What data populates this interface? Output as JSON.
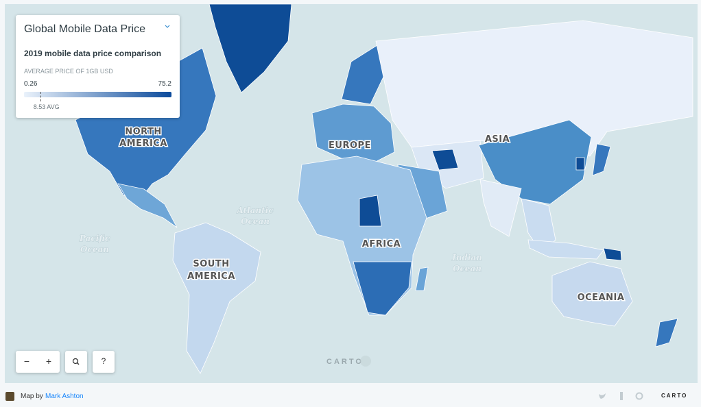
{
  "legend": {
    "title": "Global Mobile Data Price",
    "subtitle": "2019 mobile data price comparison",
    "label": "AVERAGE PRICE OF 1GB USD",
    "min": 0.26,
    "max": 75.2,
    "avg": {
      "value": 8.53,
      "label": "8.53 AVG"
    }
  },
  "map_labels": {
    "north_america": [
      "NORTH",
      "AMERICA"
    ],
    "europe": "EUROPE",
    "asia": "ASIA",
    "africa": "AFRICA",
    "south_america": [
      "SOUTH",
      "AMERICA"
    ],
    "oceania": "OCEANIA",
    "atlantic": [
      "Atlantic",
      "Ocean"
    ],
    "pacific": [
      "Pacific",
      "Ocean"
    ],
    "indian": [
      "Indian",
      "Ocean"
    ]
  },
  "controls": {
    "zoom_out": "−",
    "zoom_in": "+",
    "help": "?"
  },
  "watermark": "CARTO",
  "footer": {
    "prefix": "Map by",
    "author": "Mark Ashton",
    "logo": "CARTO"
  }
}
